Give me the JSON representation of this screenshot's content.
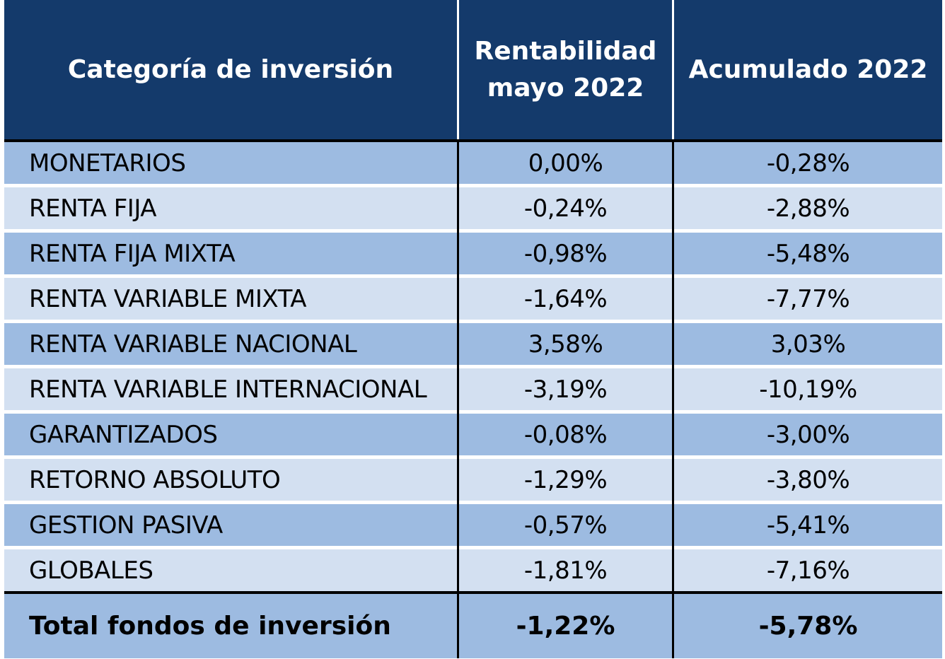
{
  "table": {
    "headers": [
      "Categoría de inversión",
      "Rentabilidad mayo 2022",
      "Acumulado 2022"
    ],
    "header_col2_line1": "Rentabilidad",
    "header_col2_line2": "mayo 2022",
    "rows": [
      {
        "category": "MONETARIOS",
        "may": "0,00%",
        "ytd": "-0,28%"
      },
      {
        "category": "RENTA FIJA",
        "may": "-0,24%",
        "ytd": "-2,88%"
      },
      {
        "category": "RENTA FIJA MIXTA",
        "may": "-0,98%",
        "ytd": "-5,48%"
      },
      {
        "category": "RENTA VARIABLE MIXTA",
        "may": "-1,64%",
        "ytd": "-7,77%"
      },
      {
        "category": "RENTA VARIABLE NACIONAL",
        "may": "3,58%",
        "ytd": "3,03%"
      },
      {
        "category": "RENTA VARIABLE INTERNACIONAL",
        "may": "-3,19%",
        "ytd": "-10,19%"
      },
      {
        "category": "GARANTIZADOS",
        "may": "-0,08%",
        "ytd": "-3,00%"
      },
      {
        "category": "RETORNO ABSOLUTO",
        "may": "-1,29%",
        "ytd": "-3,80%"
      },
      {
        "category": "GESTION PASIVA",
        "may": "-0,57%",
        "ytd": "-5,41%"
      },
      {
        "category": "GLOBALES",
        "may": "-1,81%",
        "ytd": "-7,16%"
      }
    ],
    "total": {
      "category": "Total fondos de inversión",
      "may": "-1,22%",
      "ytd": "-5,78%"
    }
  },
  "colors": {
    "header_bg": "#143a6b",
    "row_dark": "#9dbbe1",
    "row_light": "#d3e0f1"
  }
}
